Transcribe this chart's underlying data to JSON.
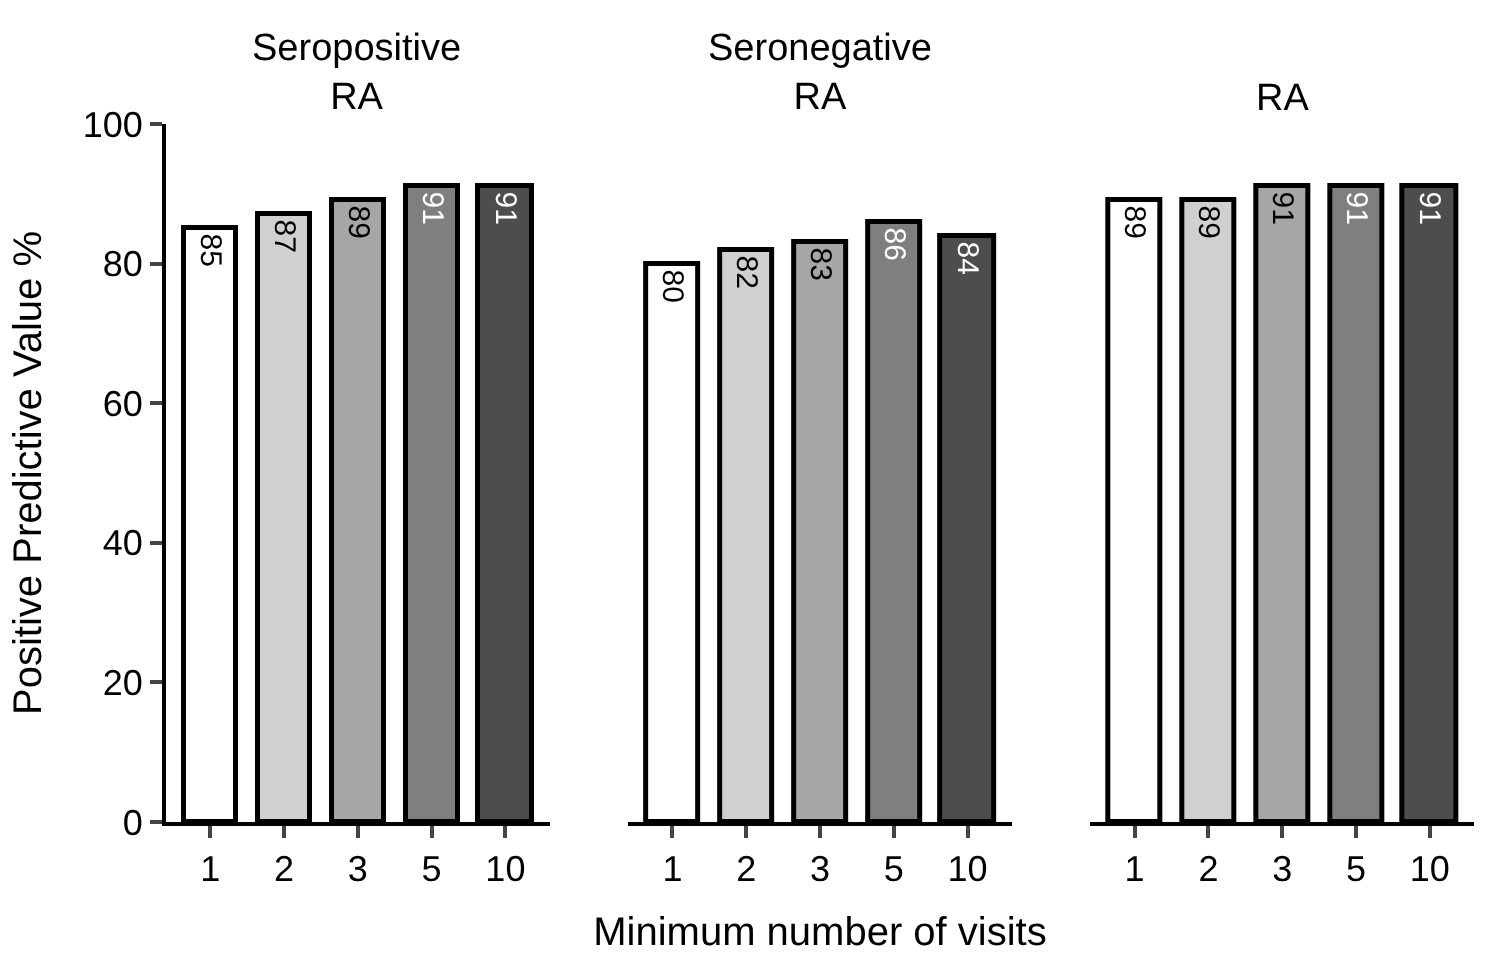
{
  "chart_data": [
    {
      "type": "bar",
      "title": "Seropositive\nRA",
      "categories": [
        "1",
        "2",
        "3",
        "5",
        "10"
      ],
      "values": [
        85,
        87,
        89,
        91,
        91
      ],
      "colors": [
        "#ffffff",
        "#d0d0d0",
        "#a6a6a6",
        "#7f7f7f",
        "#4d4d4d"
      ],
      "ylabel": "Positive Predictive Value %",
      "ylim": [
        0,
        100
      ],
      "yticks": [
        0,
        20,
        40,
        60,
        80,
        100
      ],
      "data_labels": true
    },
    {
      "type": "bar",
      "title": "Seronegative\nRA",
      "categories": [
        "1",
        "2",
        "3",
        "5",
        "10"
      ],
      "values": [
        80,
        82,
        83,
        86,
        84
      ],
      "colors": [
        "#ffffff",
        "#d0d0d0",
        "#a6a6a6",
        "#7f7f7f",
        "#4d4d4d"
      ],
      "xlabel": "Minimum number of visits",
      "ylim": [
        0,
        100
      ],
      "yticks": [
        0,
        20,
        40,
        60,
        80,
        100
      ],
      "tick_labels": "x",
      "data_labels": true
    },
    {
      "type": "bar",
      "title": "RA",
      "categories": [
        "1",
        "2",
        "3",
        "5",
        "10"
      ],
      "values": [
        89,
        89,
        91,
        91,
        91
      ],
      "colors": [
        "#ffffff",
        "#d0d0d0",
        "#a6a6a6",
        "#7f7f7f",
        "#4d4d4d"
      ],
      "ylim": [
        0,
        100
      ],
      "yticks": [
        0,
        20,
        40,
        60,
        80,
        100
      ],
      "tick_labels": "x",
      "data_labels": true
    }
  ]
}
